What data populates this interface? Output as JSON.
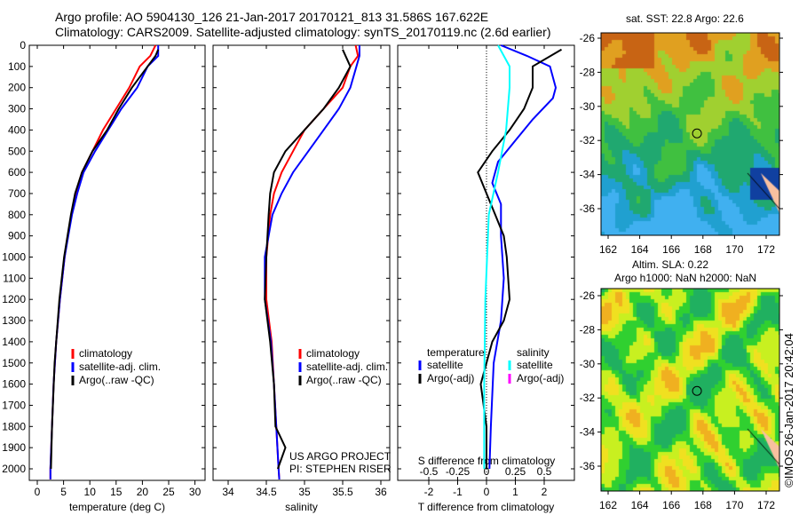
{
  "title": {
    "line1": "Argo profile: AO 5904130_126 21-Jan-2017 20170121_813 31.586S 167.622E",
    "line2": "Climatology: CARS2009. Satellite-adjusted climatology: synTS_20170119.nc (2.6d earlier)"
  },
  "colors": {
    "climatology": "#ff0000",
    "satellite": "#0000ff",
    "argo": "#000000",
    "s_satellite": "#00ffff",
    "s_argo": "#ff00ff"
  },
  "depth_ticks": [
    0,
    100,
    200,
    300,
    400,
    500,
    600,
    700,
    800,
    900,
    1000,
    1100,
    1200,
    1300,
    1400,
    1500,
    1600,
    1700,
    1800,
    1900,
    2000
  ],
  "chart_data": [
    {
      "type": "line",
      "xlabel": "temperature (deg C)",
      "ylabel": "depth",
      "xlim": [
        -1.5,
        32
      ],
      "ylim": [
        2050,
        0
      ],
      "xticks": [
        0,
        5,
        10,
        15,
        20,
        25,
        30
      ],
      "legend": [
        "climatology",
        "satellite-adj. clim.",
        "Argo(..raw -QC)"
      ],
      "series": [
        {
          "name": "climatology",
          "color": "#ff0000",
          "depth": [
            0,
            50,
            100,
            150,
            200,
            300,
            400,
            500,
            600,
            700,
            800,
            900,
            1000,
            1200,
            1400,
            1600,
            1800,
            2000,
            2050
          ],
          "values": [
            22.5,
            21.5,
            19.5,
            18.5,
            17.5,
            15,
            12.5,
            10.5,
            8.5,
            7.3,
            6.5,
            5.8,
            5.2,
            4.3,
            3.6,
            3.1,
            2.8,
            2.5,
            2.5
          ]
        },
        {
          "name": "satellite-adj. clim.",
          "color": "#0000ff",
          "depth": [
            0,
            50,
            100,
            150,
            200,
            300,
            400,
            500,
            600,
            700,
            800,
            900,
            1000,
            1200,
            1400,
            1600,
            1800,
            2000,
            2050
          ],
          "values": [
            23,
            23,
            21,
            20,
            19,
            16,
            13.5,
            11,
            8.8,
            7.6,
            6.6,
            5.9,
            5.2,
            4.3,
            3.6,
            3.1,
            2.8,
            2.5,
            2.5
          ]
        },
        {
          "name": "Argo(..raw -QC)",
          "color": "#000000",
          "depth": [
            20,
            50,
            100,
            150,
            200,
            300,
            400,
            500,
            600,
            700,
            800,
            1000,
            1200,
            1500,
            1800,
            2000
          ],
          "values": [
            23,
            22.5,
            21,
            19.5,
            18,
            15.5,
            13.3,
            10.5,
            8.5,
            7.2,
            6.4,
            5.1,
            4.2,
            3.3,
            2.8,
            2.6
          ]
        }
      ]
    },
    {
      "type": "line",
      "xlabel": "salinity",
      "ylabel": "depth",
      "xlim": [
        33.8,
        36.1
      ],
      "ylim": [
        2050,
        0
      ],
      "xticks": [
        34,
        34.5,
        35,
        35.5,
        36
      ],
      "legend": [
        "climatology",
        "satellite-adj. clim.",
        "Argo(..raw -QC)"
      ],
      "annotation": [
        "US ARGO PROJECT",
        "PI: STEPHEN RISER"
      ],
      "series": [
        {
          "name": "climatology",
          "color": "#ff0000",
          "depth": [
            0,
            50,
            100,
            200,
            300,
            400,
            500,
            600,
            700,
            800,
            1000,
            1200,
            1400,
            1600,
            1800,
            2000,
            2050
          ],
          "values": [
            35.67,
            35.7,
            35.6,
            35.5,
            35.25,
            35.0,
            34.85,
            34.7,
            34.6,
            34.55,
            34.5,
            34.5,
            34.57,
            34.6,
            34.63,
            34.66,
            34.67
          ]
        },
        {
          "name": "satellite-adj. clim.",
          "color": "#0000ff",
          "depth": [
            0,
            50,
            100,
            200,
            300,
            400,
            500,
            600,
            700,
            800,
            1000,
            1200,
            1400,
            1600,
            1800,
            2000,
            2050
          ],
          "values": [
            35.72,
            35.72,
            35.68,
            35.6,
            35.45,
            35.25,
            35.05,
            34.85,
            34.7,
            34.58,
            34.48,
            34.48,
            34.56,
            34.6,
            34.63,
            34.66,
            34.67
          ]
        },
        {
          "name": "Argo(..raw -QC)",
          "color": "#000000",
          "depth": [
            20,
            60,
            100,
            200,
            300,
            400,
            500,
            600,
            700,
            800,
            1000,
            1200,
            1400,
            1600,
            1800,
            1900,
            2000
          ],
          "values": [
            35.5,
            35.55,
            35.6,
            35.45,
            35.25,
            35.0,
            34.75,
            34.6,
            34.55,
            34.53,
            34.5,
            34.48,
            34.55,
            34.6,
            34.62,
            34.75,
            34.65
          ]
        }
      ]
    },
    {
      "type": "line",
      "xlabel": "T difference from climatology",
      "x2label": "S difference from climatology",
      "ylim": [
        2050,
        0
      ],
      "xlim": [
        -3,
        3
      ],
      "xticks": [
        -2,
        -1,
        0,
        1,
        2
      ],
      "x2ticks": [
        -0.5,
        -0.25,
        0,
        0.25,
        0.5
      ],
      "legend": {
        "temperature": "temperature",
        "salinity": "salinity",
        "items": [
          "satellite",
          "Argo(-adj)",
          "satellite",
          "Argo(-adj)"
        ]
      },
      "series": [
        {
          "name": "T satellite",
          "color": "#0000ff",
          "axis": "T",
          "depth": [
            0,
            50,
            100,
            200,
            250,
            350,
            450,
            550,
            650,
            750,
            900,
            1100,
            1300,
            1500,
            1800,
            2000
          ],
          "values": [
            0.5,
            1.4,
            2.2,
            2.4,
            2.3,
            1.6,
            1.0,
            0.4,
            0.2,
            0.5,
            0.5,
            0.6,
            0.5,
            0.25,
            0.15,
            0.1
          ]
        },
        {
          "name": "T Argo(-adj)",
          "color": "#000000",
          "axis": "T",
          "depth": [
            20,
            100,
            200,
            300,
            400,
            500,
            600,
            700,
            800,
            900,
            1000,
            1200,
            1300,
            1400,
            1600,
            1800,
            2000
          ],
          "values": [
            2.6,
            1.6,
            1.6,
            1.3,
            0.8,
            0.2,
            -0.3,
            0,
            0.3,
            0.6,
            0.7,
            0.8,
            0.6,
            0.2,
            -0.2,
            0,
            0
          ]
        },
        {
          "name": "S satellite",
          "color": "#00ffff",
          "axis": "S",
          "depth": [
            0,
            50,
            100,
            200,
            400,
            600,
            800,
            1200,
            1600,
            2000
          ],
          "values": [
            0.1,
            0.15,
            0.2,
            0.2,
            0.17,
            0.1,
            0.02,
            -0.01,
            -0.02,
            -0.02
          ]
        }
      ]
    }
  ],
  "maps": [
    {
      "title": "sat. SST: 22.8 Argo: 22.6",
      "lon_ticks": [
        162,
        164,
        166,
        168,
        170,
        172
      ],
      "lat_ticks": [
        -26,
        -28,
        -30,
        -32,
        -34,
        -36
      ],
      "marker": {
        "lon": 167.622,
        "lat": -31.586
      }
    },
    {
      "title1": "Altim. SLA: 0.22",
      "title2": "Argo h1000: NaN h2000: NaN",
      "lon_ticks": [
        162,
        164,
        166,
        168,
        170,
        172
      ],
      "lat_ticks": [
        -26,
        -28,
        -30,
        -32,
        -34,
        -36
      ],
      "marker": {
        "lon": 167.622,
        "lat": -31.586
      }
    }
  ],
  "credit": "©IMOS 26-Jan-2017 20:42:04"
}
